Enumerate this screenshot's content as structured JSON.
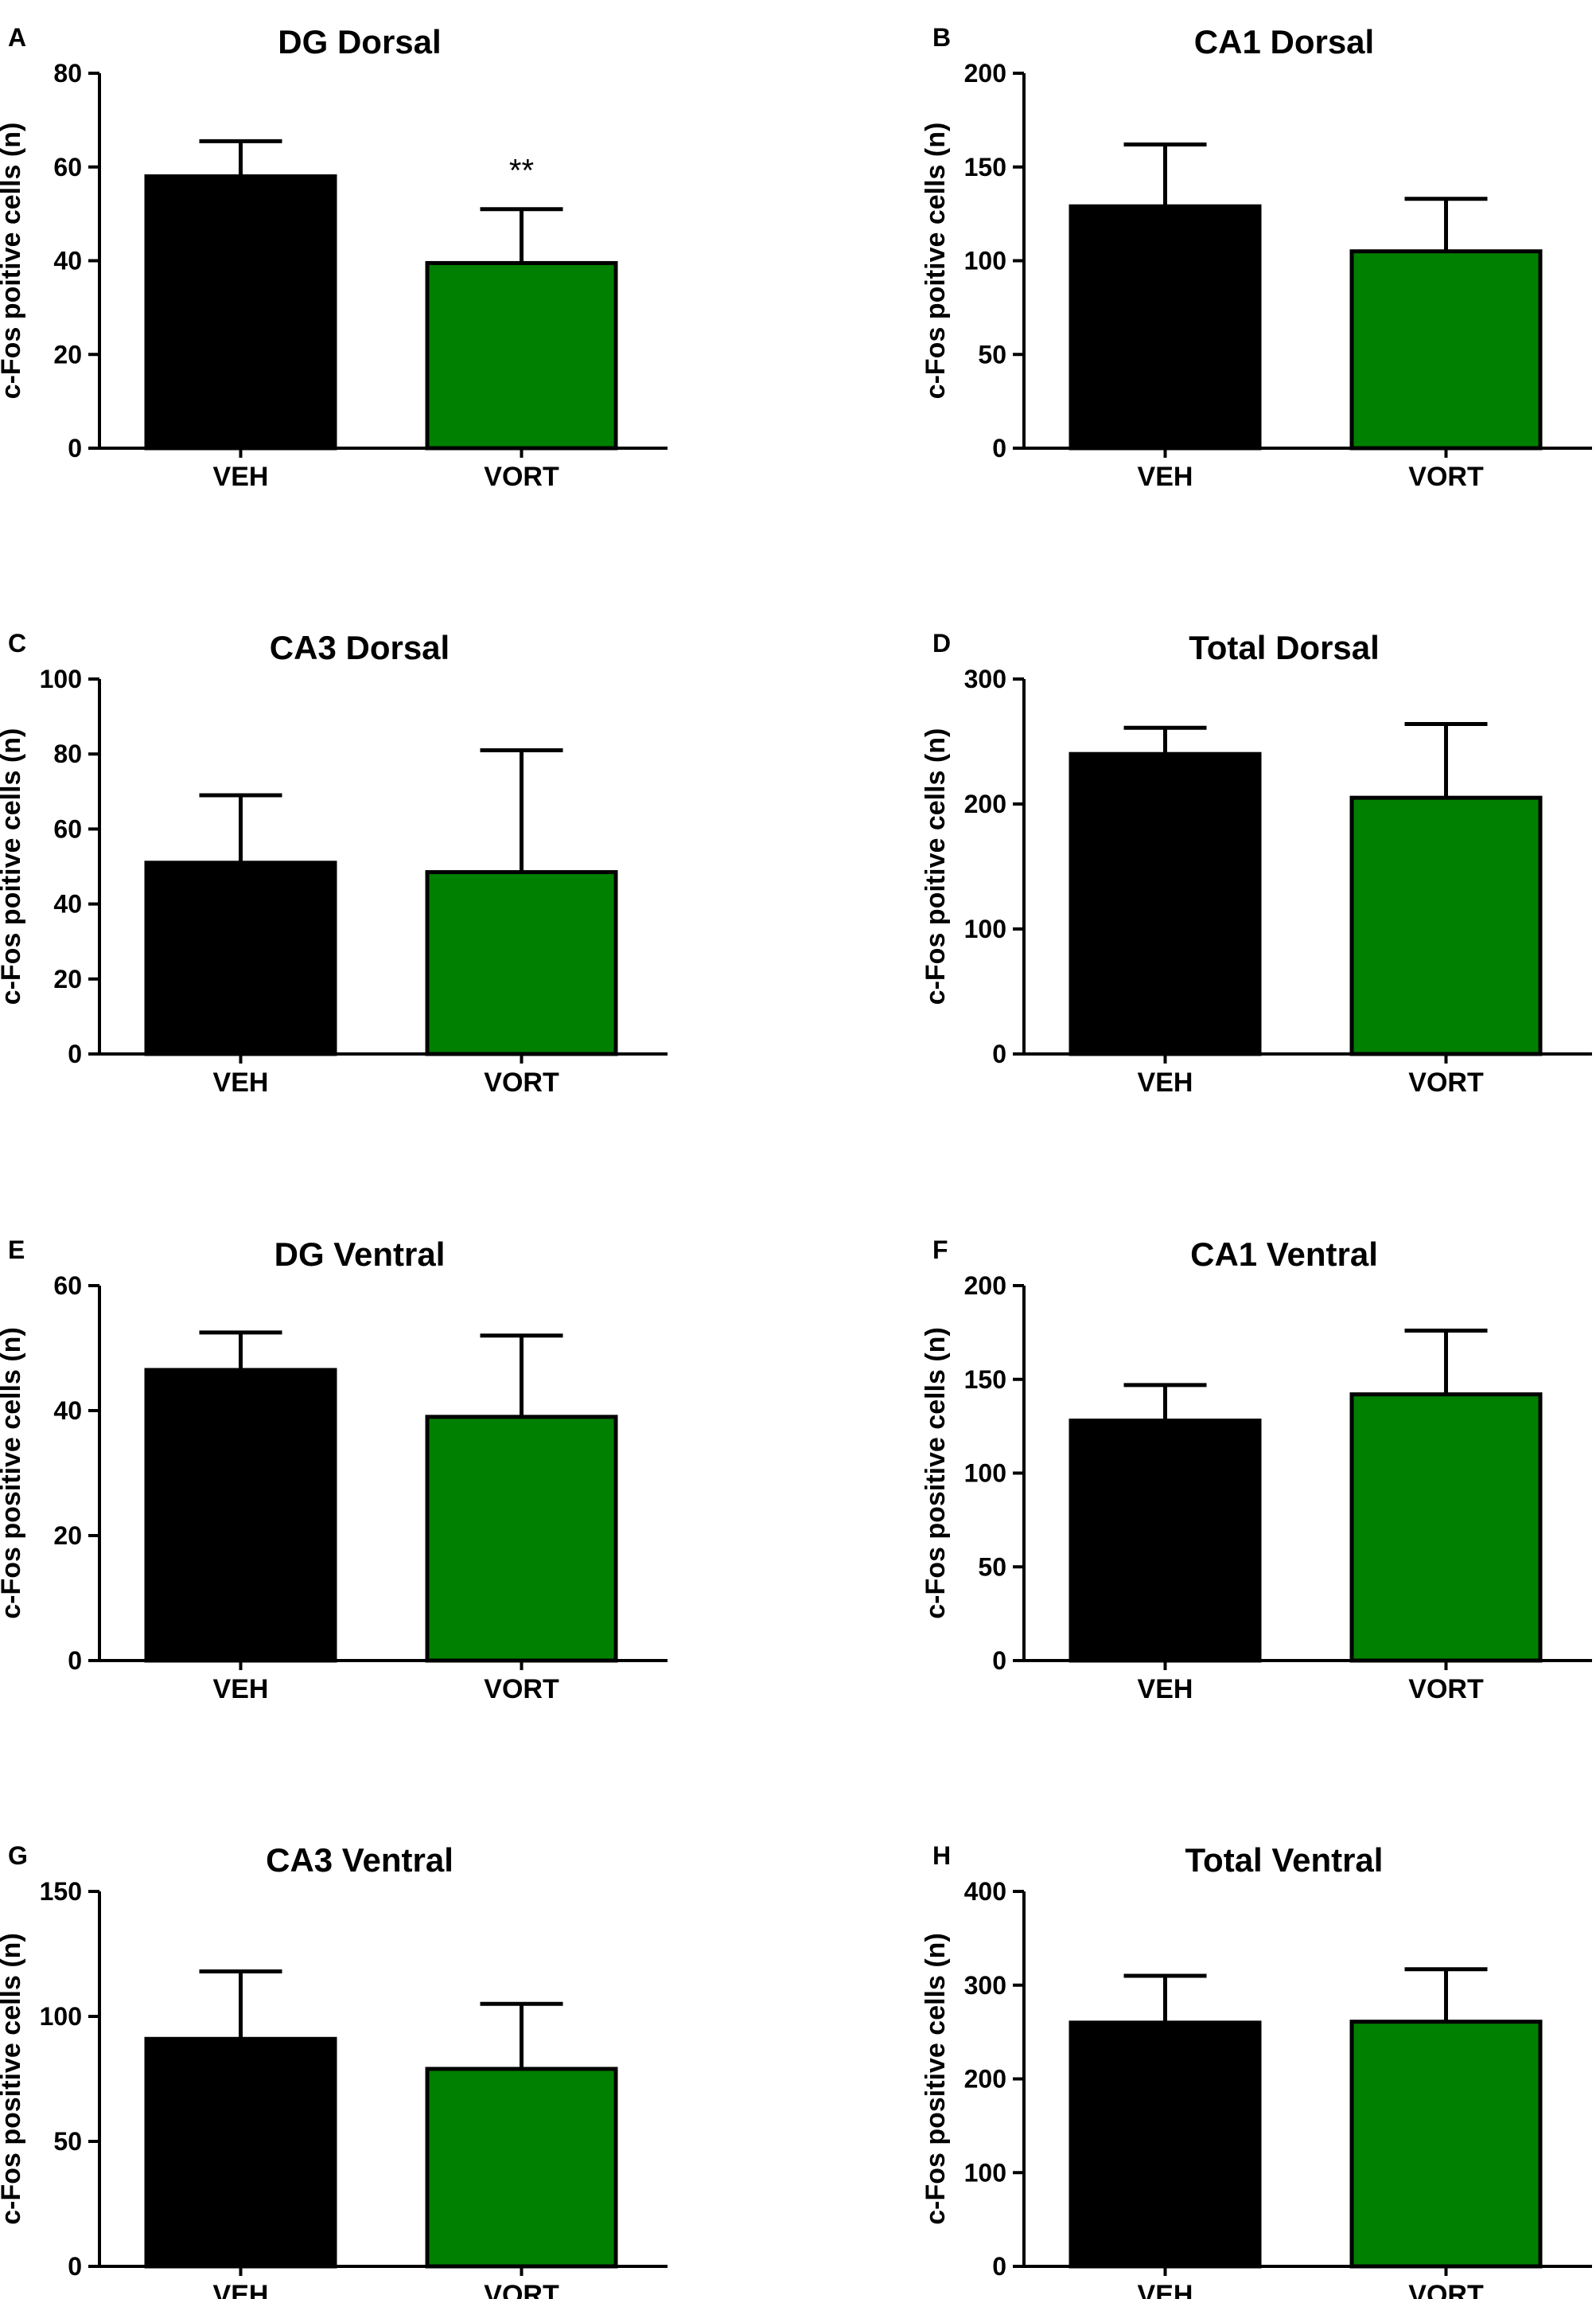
{
  "chart_data": [
    {
      "type": "bar",
      "panel_letter": "A",
      "title": "DG Dorsal",
      "ylabel": "c-Fos poitive cells (n)",
      "categories": [
        "VEH",
        "VORT"
      ],
      "values": [
        58,
        39.5
      ],
      "errors": [
        7.5,
        11.5
      ],
      "bar_colors": [
        "#000000",
        "#008000"
      ],
      "ylim": [
        0,
        80
      ],
      "yticks": [
        0,
        20,
        40,
        60,
        80
      ],
      "annotations": [
        "",
        "**"
      ]
    },
    {
      "type": "bar",
      "panel_letter": "B",
      "title": "CA1 Dorsal",
      "ylabel": "c-Fos poitive cells (n)",
      "categories": [
        "VEH",
        "VORT"
      ],
      "values": [
        129,
        105
      ],
      "errors": [
        33,
        28
      ],
      "bar_colors": [
        "#000000",
        "#008000"
      ],
      "ylim": [
        0,
        200
      ],
      "yticks": [
        0,
        50,
        100,
        150,
        200
      ],
      "annotations": [
        "",
        ""
      ]
    },
    {
      "type": "bar",
      "panel_letter": "C",
      "title": "CA3 Dorsal",
      "ylabel": "c-Fos poitive cells (n)",
      "categories": [
        "VEH",
        "VORT"
      ],
      "values": [
        51,
        48.5
      ],
      "errors": [
        18,
        32.5
      ],
      "bar_colors": [
        "#000000",
        "#008000"
      ],
      "ylim": [
        0,
        100
      ],
      "yticks": [
        0,
        20,
        40,
        60,
        80,
        100
      ],
      "annotations": [
        "",
        ""
      ]
    },
    {
      "type": "bar",
      "panel_letter": "D",
      "title": "Total Dorsal",
      "ylabel": "c-Fos poitive cells (n)",
      "categories": [
        "VEH",
        "VORT"
      ],
      "values": [
        240,
        205
      ],
      "errors": [
        21,
        59
      ],
      "bar_colors": [
        "#000000",
        "#008000"
      ],
      "ylim": [
        0,
        300
      ],
      "yticks": [
        0,
        100,
        200,
        300
      ],
      "annotations": [
        "",
        ""
      ]
    },
    {
      "type": "bar",
      "panel_letter": "E",
      "title": "DG Ventral",
      "ylabel": "c-Fos positive cells (n)",
      "categories": [
        "VEH",
        "VORT"
      ],
      "values": [
        46.5,
        39
      ],
      "errors": [
        6,
        13
      ],
      "bar_colors": [
        "#000000",
        "#008000"
      ],
      "ylim": [
        0,
        60
      ],
      "yticks": [
        0,
        20,
        40,
        60
      ],
      "annotations": [
        "",
        ""
      ]
    },
    {
      "type": "bar",
      "panel_letter": "F",
      "title": "CA1 Ventral",
      "ylabel": "c-Fos positive cells (n)",
      "categories": [
        "VEH",
        "VORT"
      ],
      "values": [
        128,
        142
      ],
      "errors": [
        19,
        34
      ],
      "bar_colors": [
        "#000000",
        "#008000"
      ],
      "ylim": [
        0,
        200
      ],
      "yticks": [
        0,
        50,
        100,
        150,
        200
      ],
      "annotations": [
        "",
        ""
      ]
    },
    {
      "type": "bar",
      "panel_letter": "G",
      "title": "CA3 Ventral",
      "ylabel": "c-Fos positive cells (n)",
      "categories": [
        "VEH",
        "VORT"
      ],
      "values": [
        91,
        79
      ],
      "errors": [
        27,
        26
      ],
      "bar_colors": [
        "#000000",
        "#008000"
      ],
      "ylim": [
        0,
        150
      ],
      "yticks": [
        0,
        50,
        100,
        150
      ],
      "annotations": [
        "",
        ""
      ]
    },
    {
      "type": "bar",
      "panel_letter": "H",
      "title": "Total Ventral",
      "ylabel": "c-Fos positive cells (n)",
      "categories": [
        "VEH",
        "VORT"
      ],
      "values": [
        260,
        261
      ],
      "errors": [
        50,
        56
      ],
      "bar_colors": [
        "#000000",
        "#008000"
      ],
      "ylim": [
        0,
        400
      ],
      "yticks": [
        0,
        100,
        200,
        300,
        400
      ],
      "annotations": [
        "",
        ""
      ]
    }
  ]
}
